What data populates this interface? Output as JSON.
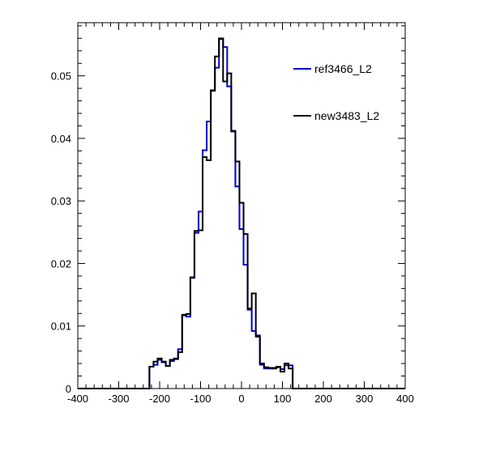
{
  "chart_data": {
    "type": "line",
    "xlim": [
      -400,
      400
    ],
    "ylim": [
      0,
      0.0585
    ],
    "x_ticks": [
      -400,
      -300,
      -200,
      -100,
      0,
      100,
      200,
      300,
      400
    ],
    "y_ticks": [
      0,
      0.01,
      0.02,
      0.03,
      0.04,
      0.05
    ],
    "x_tick_labels": [
      "-400",
      "-300",
      "-200",
      "-100",
      "0",
      "100",
      "200",
      "300",
      "400"
    ],
    "y_tick_labels": [
      "0",
      "0.01",
      "0.02",
      "0.03",
      "0.04",
      "0.05"
    ],
    "bin_width": 10,
    "bin_start": -225,
    "legend_position": "top-right",
    "series": [
      {
        "name": "ref3466_L2",
        "color": "#0000cc",
        "values": [
          0.0035,
          0.0038,
          0.0046,
          0.0042,
          0.0036,
          0.0044,
          0.0048,
          0.0063,
          0.0117,
          0.0115,
          0.0178,
          0.0249,
          0.0283,
          0.0381,
          0.0427,
          0.0476,
          0.0513,
          0.056,
          0.0546,
          0.0483,
          0.0411,
          0.0323,
          0.0255,
          0.0198,
          0.0126,
          0.0092,
          0.0085,
          0.0038,
          0.0032,
          0.0032,
          0.0033,
          0.0034,
          0.0031,
          0.0037,
          0.0037
        ]
      },
      {
        "name": "new3483_L2",
        "color": "#000000",
        "values": [
          0.0035,
          0.0043,
          0.0048,
          0.0043,
          0.0036,
          0.0046,
          0.0047,
          0.0058,
          0.0118,
          0.0119,
          0.0177,
          0.0252,
          0.0253,
          0.037,
          0.0365,
          0.0477,
          0.0531,
          0.0559,
          0.0491,
          0.0504,
          0.0412,
          0.0363,
          0.0297,
          0.0247,
          0.0128,
          0.0152,
          0.0083,
          0.004,
          0.0034,
          0.0033,
          0.0032,
          0.0035,
          0.0027,
          0.004,
          0.0032
        ]
      }
    ]
  }
}
